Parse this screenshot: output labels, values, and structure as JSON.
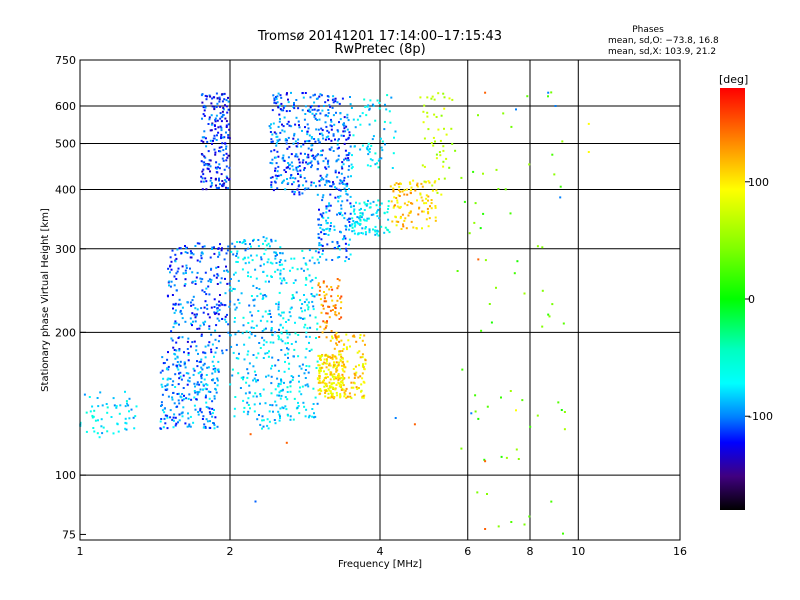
{
  "title_line1": "Tromsø 20141201 17:14:00–17:15:43",
  "title_line2": "RwPretec (8p)",
  "stats": {
    "heading": "Phases",
    "line_o": "mean, sd,O: −73.8, 16.8",
    "line_x": "mean, sd,X: 103.9, 21.2"
  },
  "chart_data": {
    "type": "scatter",
    "title": "Tromsø 20141201 17:14:00–17:15:43",
    "subtitle": "RwPretec (8p)",
    "xlabel": "Frequency [MHz]",
    "ylabel": "Stationary phase Virtual Height [km]",
    "x_scale": "log",
    "y_scale": "log",
    "xlim": [
      1,
      16
    ],
    "ylim": [
      73,
      750
    ],
    "x_ticks": [
      1,
      2,
      4,
      6,
      8,
      10,
      16
    ],
    "x_tick_labels": [
      "1",
      "2",
      "4",
      "6",
      "8",
      "10",
      "16"
    ],
    "y_ticks": [
      75,
      100,
      200,
      300,
      400,
      500,
      600,
      750
    ],
    "y_tick_labels": [
      "75",
      "100",
      "200",
      "300",
      "400",
      "500",
      "600",
      "750"
    ],
    "x_grid": [
      2,
      4,
      6,
      8,
      10
    ],
    "y_grid": [
      100,
      200,
      300,
      400,
      500,
      600
    ],
    "grid": true,
    "colorbar": {
      "label": "[deg]",
      "range": [
        -180,
        180
      ],
      "ticks": [
        100,
        0,
        -100
      ],
      "tick_labels": [
        "100",
        "0",
        "-100"
      ]
    },
    "clusters": [
      {
        "x": [
          1.0,
          1.3
        ],
        "y": [
          120,
          150
        ],
        "phase": -75,
        "n": 60
      },
      {
        "x": [
          1.45,
          1.9
        ],
        "y": [
          125,
          180
        ],
        "phase": -95,
        "n": 240
      },
      {
        "x": [
          1.5,
          2.0
        ],
        "y": [
          180,
          310
        ],
        "phase": -105,
        "n": 260
      },
      {
        "x": [
          1.75,
          2.0
        ],
        "y": [
          400,
          640
        ],
        "phase": -115,
        "n": 200
      },
      {
        "x": [
          2.0,
          2.55
        ],
        "y": [
          125,
          320
        ],
        "phase": -80,
        "n": 280
      },
      {
        "x": [
          2.4,
          2.9
        ],
        "y": [
          390,
          640
        ],
        "phase": -105,
        "n": 220
      },
      {
        "x": [
          2.5,
          3.0
        ],
        "y": [
          130,
          300
        ],
        "phase": -75,
        "n": 200
      },
      {
        "x": [
          2.9,
          3.5
        ],
        "y": [
          400,
          640
        ],
        "phase": -105,
        "n": 220
      },
      {
        "x": [
          3.0,
          3.5
        ],
        "y": [
          280,
          400
        ],
        "phase": -95,
        "n": 120
      },
      {
        "x": [
          3.0,
          3.4
        ],
        "y": [
          145,
          180
        ],
        "phase": 105,
        "n": 180
      },
      {
        "x": [
          3.2,
          3.75
        ],
        "y": [
          145,
          200
        ],
        "phase": 110,
        "n": 120
      },
      {
        "x": [
          3.0,
          3.35
        ],
        "y": [
          190,
          260
        ],
        "phase": 135,
        "n": 70
      },
      {
        "x": [
          3.5,
          4.2
        ],
        "y": [
          320,
          380
        ],
        "phase": -70,
        "n": 100
      },
      {
        "x": [
          3.5,
          4.3
        ],
        "y": [
          440,
          640
        ],
        "phase": -75,
        "n": 70
      },
      {
        "x": [
          4.2,
          5.2
        ],
        "y": [
          330,
          420
        ],
        "phase": 115,
        "n": 110
      },
      {
        "x": [
          4.8,
          5.6
        ],
        "y": [
          380,
          640
        ],
        "phase": 70,
        "n": 50
      },
      {
        "x": [
          5.5,
          9.5
        ],
        "y": [
          75,
          650
        ],
        "phase": 30,
        "n": 70
      }
    ],
    "points": [
      {
        "x": 2.25,
        "y": 88,
        "phase": -105
      },
      {
        "x": 6.5,
        "y": 77,
        "phase": 150
      },
      {
        "x": 6.5,
        "y": 107,
        "phase": 150
      },
      {
        "x": 4.7,
        "y": 128,
        "phase": 150
      },
      {
        "x": 2.2,
        "y": 122,
        "phase": 150
      },
      {
        "x": 2.6,
        "y": 117,
        "phase": 150
      },
      {
        "x": 9.4,
        "y": 125,
        "phase": 60
      },
      {
        "x": 4.3,
        "y": 132,
        "phase": -100
      },
      {
        "x": 6.1,
        "y": 135,
        "phase": -100
      },
      {
        "x": 7.5,
        "y": 137,
        "phase": 100
      },
      {
        "x": 6.3,
        "y": 285,
        "phase": 150
      },
      {
        "x": 6.5,
        "y": 640,
        "phase": 150
      },
      {
        "x": 7.5,
        "y": 590,
        "phase": -100
      },
      {
        "x": 8.7,
        "y": 640,
        "phase": -100
      },
      {
        "x": 9.0,
        "y": 600,
        "phase": -100
      },
      {
        "x": 10.5,
        "y": 550,
        "phase": 100
      },
      {
        "x": 10.5,
        "y": 480,
        "phase": 100
      },
      {
        "x": 9.2,
        "y": 385,
        "phase": -100
      }
    ]
  }
}
